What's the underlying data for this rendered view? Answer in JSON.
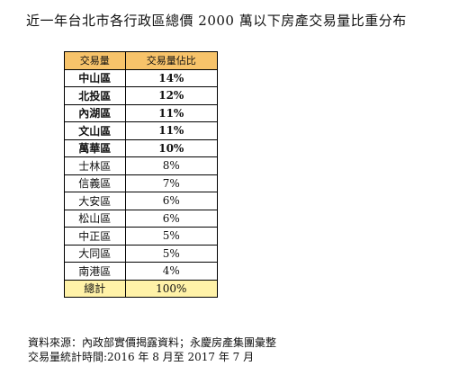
{
  "title": "近一年台北市各行政區總價 2000 萬以下房產交易量比重分布",
  "table": {
    "header": {
      "district": "交易量",
      "share": "交易量佔比"
    },
    "rows": [
      {
        "district": "中山區",
        "share": "14%",
        "bold": true
      },
      {
        "district": "北投區",
        "share": "12%",
        "bold": true
      },
      {
        "district": "內湖區",
        "share": "11%",
        "bold": true
      },
      {
        "district": "文山區",
        "share": "11%",
        "bold": true
      },
      {
        "district": "萬華區",
        "share": "10%",
        "bold": true
      },
      {
        "district": "士林區",
        "share": "8%",
        "bold": false
      },
      {
        "district": "信義區",
        "share": "7%",
        "bold": false
      },
      {
        "district": "大安區",
        "share": "6%",
        "bold": false
      },
      {
        "district": "松山區",
        "share": "6%",
        "bold": false
      },
      {
        "district": "中正區",
        "share": "5%",
        "bold": false
      },
      {
        "district": "大同區",
        "share": "5%",
        "bold": false
      },
      {
        "district": "南港區",
        "share": "4%",
        "bold": false
      }
    ],
    "total": {
      "district": "總計",
      "share": "100%"
    }
  },
  "footnote": {
    "source": "資料來源：內政部實價揭露資料；永慶房產集團彙整",
    "period": "交易量統計時間:2016 年 8 月至 2017 年 7 月"
  },
  "colors": {
    "header_bg": "#f7c36a",
    "total_bg": "#fff2a8"
  }
}
